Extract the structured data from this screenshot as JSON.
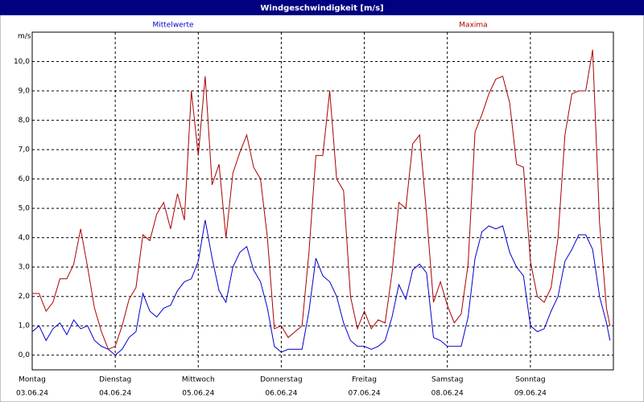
{
  "chart_data": {
    "type": "line",
    "title": "Windgeschwindigkeit [m/s]",
    "y_label": "m/s",
    "x": [
      0,
      2,
      4,
      6,
      8,
      10,
      12,
      14,
      16,
      18,
      20,
      22,
      24,
      26,
      28,
      30,
      32,
      34,
      36,
      38,
      40,
      42,
      44,
      46,
      48,
      50,
      52,
      54,
      56,
      58,
      60,
      62,
      64,
      66,
      68,
      70,
      72,
      74,
      76,
      78,
      80,
      82,
      84,
      86,
      88,
      90,
      92,
      94,
      96,
      98,
      100,
      102,
      104,
      106,
      108,
      110,
      112,
      114,
      116,
      118,
      120,
      122,
      124,
      126,
      128,
      130,
      132,
      134,
      136,
      138,
      140,
      142,
      144,
      146,
      148,
      150,
      152,
      154,
      156,
      158,
      160,
      162,
      164,
      166,
      167
    ],
    "series": [
      {
        "name": "Mittelwerte",
        "color": "#0000cc",
        "values": [
          0.8,
          1.0,
          0.5,
          0.9,
          1.1,
          0.7,
          1.2,
          0.9,
          1.0,
          0.5,
          0.3,
          0.2,
          0.0,
          0.2,
          0.6,
          0.8,
          2.1,
          1.5,
          1.3,
          1.6,
          1.7,
          2.2,
          2.5,
          2.6,
          3.2,
          4.6,
          3.3,
          2.2,
          1.8,
          3.0,
          3.5,
          3.7,
          2.9,
          2.5,
          1.6,
          0.3,
          0.1,
          0.2,
          0.2,
          0.2,
          1.5,
          3.3,
          2.7,
          2.5,
          2.0,
          1.1,
          0.5,
          0.3,
          0.3,
          0.2,
          0.3,
          0.5,
          1.3,
          2.4,
          1.9,
          2.9,
          3.1,
          2.8,
          0.6,
          0.5,
          0.3,
          0.3,
          0.3,
          1.3,
          3.3,
          4.2,
          4.4,
          4.3,
          4.4,
          3.5,
          3.0,
          2.7,
          1.0,
          0.8,
          0.9,
          1.5,
          2.0,
          3.2,
          3.6,
          4.1,
          4.1,
          3.6,
          2.0,
          1.1,
          0.5
        ]
      },
      {
        "name": "Maxima",
        "color": "#aa0000",
        "values": [
          2.1,
          2.1,
          1.5,
          1.8,
          2.6,
          2.6,
          3.1,
          4.3,
          3.0,
          1.6,
          0.8,
          0.2,
          0.3,
          1.0,
          1.9,
          2.3,
          4.1,
          3.9,
          4.8,
          5.2,
          4.3,
          5.5,
          4.6,
          9.0,
          6.8,
          9.5,
          5.8,
          6.5,
          4.0,
          6.2,
          6.9,
          7.5,
          6.4,
          6.0,
          4.0,
          0.9,
          1.0,
          0.6,
          0.8,
          1.0,
          3.5,
          6.8,
          6.8,
          9.0,
          6.0,
          5.6,
          2.0,
          0.9,
          1.5,
          0.9,
          1.2,
          1.1,
          2.8,
          5.2,
          5.0,
          7.2,
          7.5,
          4.8,
          1.8,
          2.5,
          1.7,
          1.1,
          1.4,
          3.1,
          7.6,
          8.2,
          8.9,
          9.4,
          9.5,
          8.6,
          6.5,
          6.4,
          3.2,
          2.0,
          1.8,
          2.3,
          4.0,
          7.5,
          8.9,
          9.0,
          9.0,
          10.4,
          4.5,
          1.6,
          1.0
        ]
      }
    ],
    "xlim": [
      0,
      168
    ],
    "xticks": [
      {
        "value": 0,
        "label": "Montag"
      },
      {
        "value": 24,
        "label": "Dienstag"
      },
      {
        "value": 48,
        "label": "Mittwoch"
      },
      {
        "value": 72,
        "label": "Donnerstag"
      },
      {
        "value": 96,
        "label": "Freitag"
      },
      {
        "value": 120,
        "label": "Samstag"
      },
      {
        "value": 144,
        "label": "Sonntag"
      }
    ],
    "xtick_dates": [
      "03.06.24",
      "04.06.24",
      "05.06.24",
      "06.06.24",
      "07.06.24",
      "08.06.24",
      "09.06.24"
    ],
    "ylim": [
      -0.5,
      11
    ],
    "yticks": [
      {
        "value": 0,
        "label": "0,0"
      },
      {
        "value": 1,
        "label": "1,0"
      },
      {
        "value": 2,
        "label": "2,0"
      },
      {
        "value": 3,
        "label": "3,0"
      },
      {
        "value": 4,
        "label": "4,0"
      },
      {
        "value": 5,
        "label": "5,0"
      },
      {
        "value": 6,
        "label": "6,0"
      },
      {
        "value": 7,
        "label": "7,0"
      },
      {
        "value": 8,
        "label": "8,0"
      },
      {
        "value": 9,
        "label": "9,0"
      },
      {
        "value": 10,
        "label": "10,0"
      }
    ],
    "grid": true
  }
}
